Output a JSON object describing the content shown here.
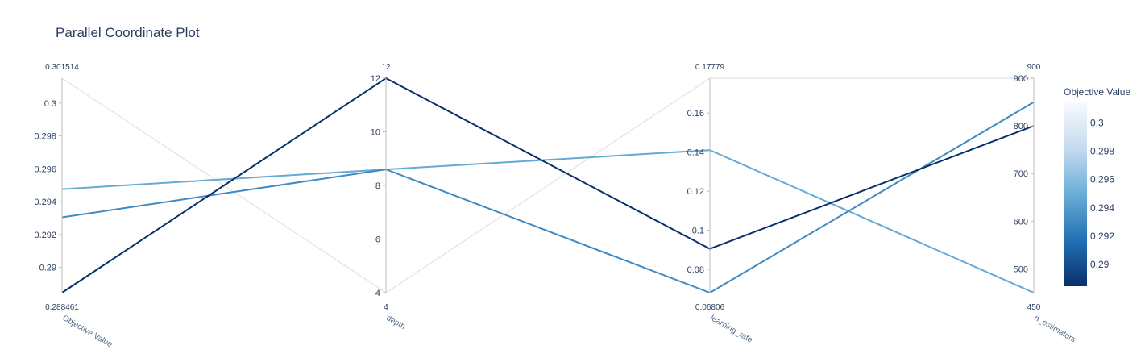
{
  "chart_data": {
    "type": "parallel_coordinates",
    "title": "Parallel Coordinate Plot",
    "colorscale": {
      "title": "Objective Value",
      "range": [
        0.288461,
        0.301514
      ],
      "ticks": [
        "0.3",
        "0.298",
        "0.296",
        "0.294",
        "0.292",
        "0.29"
      ],
      "stops": [
        "#08306b",
        "#2171b5",
        "#6baed6",
        "#c6dbef",
        "#f7fbff"
      ]
    },
    "dimensions": [
      {
        "label": "Objective Value",
        "range": [
          0.288461,
          0.301514
        ],
        "range_labels": [
          "0.288461",
          "0.301514"
        ],
        "ticks": [
          "0.29",
          "0.292",
          "0.294",
          "0.296",
          "0.298",
          "0.3"
        ]
      },
      {
        "label": "depth",
        "range": [
          4,
          12
        ],
        "range_labels": [
          "4",
          "12"
        ],
        "ticks": [
          "4",
          "6",
          "8",
          "10",
          "12"
        ]
      },
      {
        "label": "learning_rate",
        "range": [
          0.06806,
          0.17779
        ],
        "range_labels": [
          "0.06806",
          "0.17779"
        ],
        "ticks": [
          "0.08",
          "0.1",
          "0.12",
          "0.14",
          "0.16"
        ]
      },
      {
        "label": "n_estimators",
        "range": [
          450,
          900
        ],
        "range_labels": [
          "450",
          "900"
        ],
        "ticks": [
          "500",
          "600",
          "700",
          "800",
          "900"
        ]
      }
    ],
    "lines": [
      {
        "values": [
          0.301514,
          4,
          0.17779,
          900
        ]
      },
      {
        "values": [
          0.29476,
          8.6,
          0.141,
          450
        ]
      },
      {
        "values": [
          0.29305,
          8.6,
          0.06806,
          850
        ]
      },
      {
        "values": [
          0.288461,
          12,
          0.0905,
          800
        ]
      }
    ]
  }
}
